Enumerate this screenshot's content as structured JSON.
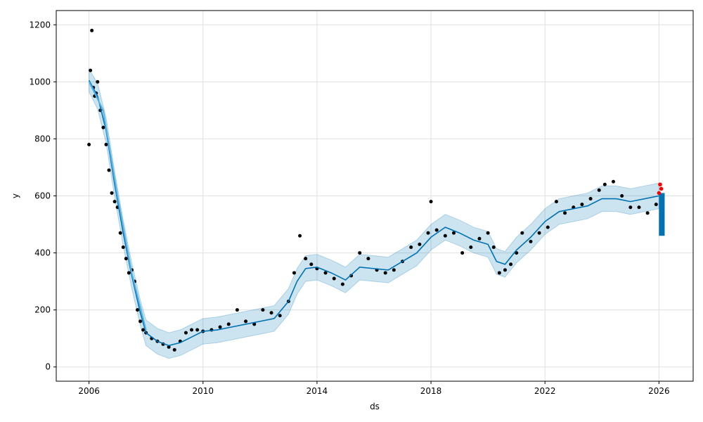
{
  "chart_data": {
    "type": "scatter",
    "title": "",
    "xlabel": "ds",
    "ylabel": "y",
    "xlim": [
      2004.85,
      2027.2
    ],
    "ylim": [
      -50,
      1250
    ],
    "grid": true,
    "x_ticks": [
      2006,
      2010,
      2014,
      2018,
      2022,
      2026
    ],
    "x_tick_labels": [
      "2006",
      "2010",
      "2014",
      "2018",
      "2022",
      "2026"
    ],
    "y_ticks": [
      0,
      200,
      400,
      600,
      800,
      1000,
      1200
    ],
    "y_tick_labels": [
      "0",
      "200",
      "400",
      "600",
      "800",
      "1000",
      "1200"
    ],
    "colors": {
      "observed": "#000000",
      "forecast_line": "#0072B2",
      "uncertainty_band": "#0072B2",
      "future_highlight": "#ff0000",
      "trend_overlay": "#56B4E9",
      "grid": "#e0e0e0"
    },
    "series": [
      {
        "role": "forecast",
        "x": [
          2006.0,
          2006.3,
          2006.6,
          2006.9,
          2007.2,
          2007.5,
          2007.8,
          2008.0,
          2008.4,
          2008.8,
          2009.2,
          2009.6,
          2010.0,
          2010.5,
          2011.0,
          2011.5,
          2012.0,
          2012.5,
          2013.0,
          2013.3,
          2013.6,
          2014.0,
          2014.5,
          2015.0,
          2015.5,
          2016.0,
          2016.5,
          2017.0,
          2017.5,
          2018.0,
          2018.5,
          2019.0,
          2019.5,
          2020.0,
          2020.3,
          2020.6,
          2021.0,
          2021.5,
          2022.0,
          2022.5,
          2023.0,
          2023.5,
          2024.0,
          2024.5,
          2025.0,
          2025.5,
          2026.0
        ],
        "y": [
          1005,
          950,
          830,
          640,
          470,
          320,
          190,
          120,
          90,
          75,
          85,
          105,
          125,
          130,
          140,
          150,
          160,
          170,
          230,
          300,
          345,
          350,
          330,
          305,
          350,
          345,
          340,
          370,
          400,
          455,
          490,
          470,
          445,
          430,
          370,
          360,
          410,
          455,
          510,
          545,
          555,
          565,
          590,
          590,
          580,
          590,
          600
        ],
        "upper": [
          1045,
          995,
          875,
          685,
          515,
          365,
          235,
          165,
          135,
          120,
          130,
          150,
          170,
          175,
          185,
          195,
          205,
          215,
          275,
          345,
          390,
          395,
          375,
          350,
          395,
          390,
          385,
          415,
          445,
          500,
          535,
          515,
          490,
          475,
          415,
          405,
          455,
          500,
          555,
          590,
          600,
          610,
          635,
          635,
          625,
          635,
          645
        ],
        "lower": [
          965,
          905,
          785,
          595,
          425,
          275,
          145,
          75,
          45,
          30,
          40,
          60,
          80,
          85,
          95,
          105,
          115,
          125,
          185,
          255,
          300,
          305,
          285,
          260,
          305,
          300,
          295,
          325,
          355,
          410,
          445,
          425,
          400,
          385,
          325,
          315,
          365,
          410,
          465,
          500,
          510,
          520,
          545,
          545,
          535,
          545,
          555
        ]
      },
      {
        "role": "trend",
        "x": [
          2006.0,
          2006.5,
          2007.0,
          2007.5,
          2008.0
        ],
        "y": [
          1000,
          900,
          600,
          330,
          130
        ]
      },
      {
        "role": "observed",
        "x": [
          2006.0,
          2006.05,
          2006.1,
          2006.15,
          2006.2,
          2006.25,
          2006.3,
          2006.4,
          2006.5,
          2006.6,
          2006.7,
          2006.8,
          2006.9,
          2007.0,
          2007.1,
          2007.2,
          2007.3,
          2007.4,
          2007.5,
          2007.6,
          2007.7,
          2007.8,
          2007.9,
          2008.0,
          2008.2,
          2008.4,
          2008.6,
          2008.8,
          2009.0,
          2009.2,
          2009.4,
          2009.6,
          2009.8,
          2010.0,
          2010.3,
          2010.6,
          2010.9,
          2011.2,
          2011.5,
          2011.8,
          2012.1,
          2012.4,
          2012.7,
          2013.0,
          2013.2,
          2013.4,
          2013.6,
          2013.8,
          2014.0,
          2014.3,
          2014.6,
          2014.9,
          2015.2,
          2015.5,
          2015.8,
          2016.1,
          2016.4,
          2016.7,
          2017.0,
          2017.3,
          2017.6,
          2017.9,
          2018.0,
          2018.2,
          2018.5,
          2018.8,
          2019.1,
          2019.4,
          2019.7,
          2020.0,
          2020.2,
          2020.4,
          2020.6,
          2020.8,
          2021.0,
          2021.2,
          2021.5,
          2021.8,
          2022.1,
          2022.4,
          2022.7,
          2023.0,
          2023.3,
          2023.6,
          2023.9,
          2024.1,
          2024.4,
          2024.7,
          2025.0,
          2025.3,
          2025.6,
          2025.9
        ],
        "y": [
          780,
          1040,
          1180,
          980,
          950,
          960,
          1000,
          900,
          840,
          780,
          690,
          610,
          580,
          560,
          470,
          420,
          380,
          330,
          340,
          300,
          200,
          160,
          130,
          120,
          100,
          90,
          80,
          70,
          60,
          90,
          120,
          130,
          130,
          125,
          130,
          140,
          150,
          200,
          160,
          150,
          200,
          190,
          180,
          230,
          330,
          460,
          380,
          360,
          345,
          330,
          310,
          290,
          320,
          400,
          380,
          340,
          330,
          340,
          370,
          420,
          430,
          470,
          580,
          480,
          460,
          470,
          400,
          420,
          450,
          470,
          420,
          330,
          340,
          360,
          400,
          470,
          440,
          470,
          490,
          580,
          540,
          560,
          570,
          590,
          620,
          640,
          650,
          600,
          560,
          560,
          540,
          570
        ]
      },
      {
        "role": "future_observed",
        "x": [
          2026.0,
          2026.04,
          2026.08
        ],
        "y": [
          610,
          640,
          625
        ]
      },
      {
        "role": "future_forecast",
        "x": [
          2026.0,
          2026.2
        ],
        "y": [
          460,
          610
        ]
      }
    ]
  }
}
